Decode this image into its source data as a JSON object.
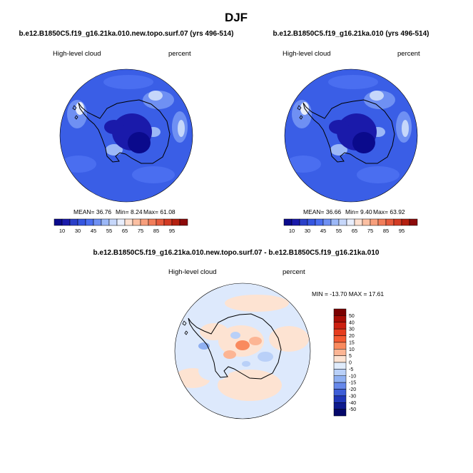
{
  "page": {
    "title": "DJF"
  },
  "chart_data": [
    {
      "type": "heatmap",
      "projection": "south-polar-stereographic",
      "title": "b.e12.B1850C5.f19_g16.21ka.010.new.topo.surf.07 (yrs 496-514)",
      "left_label": "High-level cloud",
      "right_label": "percent",
      "stats_text": {
        "mean": "MEAN=  36.76",
        "min": "Min=   8.24",
        "max": "Max=  61.08"
      },
      "stats": {
        "mean": 36.76,
        "min": 8.24,
        "max": 61.08
      },
      "colorbar": {
        "orientation": "horizontal",
        "tick_labels": [
          "10",
          "30",
          "45",
          "55",
          "65",
          "75",
          "85",
          "95"
        ],
        "colors": [
          "#0a0a8c",
          "#1a1aaa",
          "#2a3fc8",
          "#3555e0",
          "#4a6ef0",
          "#6f90f3",
          "#9cb8f7",
          "#c6d7fa",
          "#e8eefc",
          "#fde0d0",
          "#fbbfa2",
          "#f79f7c",
          "#f17d5a",
          "#e65a3c",
          "#d23b24",
          "#b4200f",
          "#8c0a0a"
        ]
      }
    },
    {
      "type": "heatmap",
      "projection": "south-polar-stereographic",
      "title": "b.e12.B1850C5.f19_g16.21ka.010 (yrs 496-514)",
      "left_label": "High-level cloud",
      "right_label": "percent",
      "stats_text": {
        "mean": "MEAN=  36.66",
        "min": "Min=   9.40",
        "max": "Max=  63.92"
      },
      "stats": {
        "mean": 36.66,
        "min": 9.4,
        "max": 63.92
      },
      "colorbar": {
        "orientation": "horizontal",
        "tick_labels": [
          "10",
          "30",
          "45",
          "55",
          "65",
          "75",
          "85",
          "95"
        ],
        "colors": [
          "#0a0a8c",
          "#1a1aaa",
          "#2a3fc8",
          "#3555e0",
          "#4a6ef0",
          "#6f90f3",
          "#9cb8f7",
          "#c6d7fa",
          "#e8eefc",
          "#fde0d0",
          "#fbbfa2",
          "#f79f7c",
          "#f17d5a",
          "#e65a3c",
          "#d23b24",
          "#b4200f",
          "#8c0a0a"
        ]
      }
    },
    {
      "type": "heatmap",
      "projection": "south-polar-stereographic",
      "title": "b.e12.B1850C5.f19_g16.21ka.010.new.topo.surf.07 - b.e12.B1850C5.f19_g16.21ka.010",
      "left_label": "High-level cloud",
      "right_label": "percent",
      "stats_text": "MIN = -13.70 MAX =  17.61",
      "stats": {
        "min": -13.7,
        "max": 17.61
      },
      "colorbar": {
        "orientation": "vertical",
        "tick_labels": [
          "50",
          "40",
          "30",
          "20",
          "15",
          "10",
          "5",
          "0",
          "-5",
          "-10",
          "-15",
          "-20",
          "-30",
          "-40",
          "-50"
        ],
        "colors": [
          "#7a0000",
          "#a80d05",
          "#cc2010",
          "#e63c1e",
          "#f45a32",
          "#f98a5e",
          "#fcb594",
          "#fde3d2",
          "#e0ecfc",
          "#b9d0f8",
          "#8fb0f2",
          "#6688ea",
          "#3e5ed8",
          "#1f36b8",
          "#0d1a8e",
          "#05086a"
        ]
      }
    }
  ]
}
